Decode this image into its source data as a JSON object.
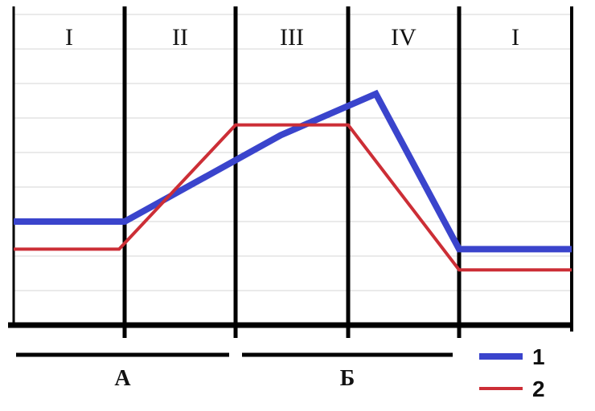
{
  "chart_data": {
    "type": "line",
    "title": "",
    "xlabel": "",
    "ylabel": "",
    "grid": true,
    "x": [
      0,
      1,
      2,
      3,
      4,
      5
    ],
    "xlim": [
      0,
      5
    ],
    "ylim": [
      0,
      9
    ],
    "phases": [
      "I",
      "II",
      "III",
      "IV",
      "I"
    ],
    "groups": [
      {
        "label": "А",
        "from": 0,
        "to": 2
      },
      {
        "label": "Б",
        "from": 2,
        "to": 4
      }
    ],
    "series": [
      {
        "name": "1",
        "color": "#3a44cc",
        "points": [
          [
            0,
            3.0
          ],
          [
            1,
            3.0
          ],
          [
            2.4,
            5.5
          ],
          [
            3.25,
            6.7
          ],
          [
            4,
            2.2
          ],
          [
            5,
            2.2
          ]
        ]
      },
      {
        "name": "2",
        "color": "#cc2e36",
        "points": [
          [
            0,
            2.2
          ],
          [
            0.95,
            2.2
          ],
          [
            2,
            5.8
          ],
          [
            3,
            5.8
          ],
          [
            4,
            1.6
          ],
          [
            5,
            1.6
          ]
        ]
      }
    ],
    "legend_position": "bottom-right"
  }
}
